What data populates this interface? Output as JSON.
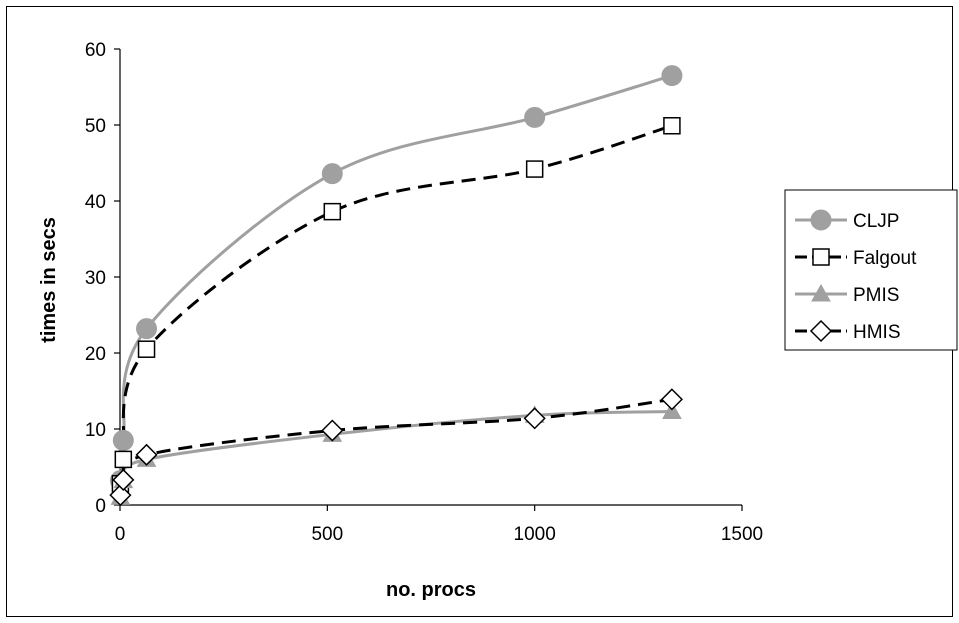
{
  "chart_data": {
    "type": "line",
    "xlabel": "no. procs",
    "ylabel": "times in secs",
    "xlim": [
      0,
      1500
    ],
    "ylim": [
      0,
      60
    ],
    "xticks": [
      0,
      500,
      1000,
      1500
    ],
    "yticks": [
      0,
      10,
      20,
      30,
      40,
      50,
      60
    ],
    "grid": false,
    "legend": "right",
    "series": [
      {
        "name": "CLJP",
        "marker": "circle",
        "line_style": "solid",
        "line_color": "#a0a0a0",
        "marker_fill": "#a0a0a0",
        "points": [
          [
            1,
            3.2
          ],
          [
            8,
            8.5
          ],
          [
            64,
            23.2
          ],
          [
            512,
            43.6
          ],
          [
            1000,
            51.0
          ],
          [
            1331,
            56.5
          ]
        ]
      },
      {
        "name": "Falgout",
        "marker": "square",
        "line_style": "dashed",
        "line_color": "#000000",
        "marker_fill": "#ffffff",
        "points": [
          [
            1,
            2.8
          ],
          [
            8,
            6.0
          ],
          [
            64,
            20.5
          ],
          [
            512,
            38.6
          ],
          [
            1000,
            44.2
          ],
          [
            1331,
            49.9
          ]
        ]
      },
      {
        "name": "PMIS",
        "marker": "triangle",
        "line_style": "solid",
        "line_color": "#a0a0a0",
        "marker_fill": "#a0a0a0",
        "points": [
          [
            1,
            1.0
          ],
          [
            8,
            3.2
          ],
          [
            64,
            6.0
          ],
          [
            512,
            9.3
          ],
          [
            1000,
            11.8
          ],
          [
            1331,
            12.3
          ]
        ]
      },
      {
        "name": "HMIS",
        "marker": "diamond",
        "line_style": "dashed",
        "line_color": "#000000",
        "marker_fill": "#ffffff",
        "points": [
          [
            1,
            1.3
          ],
          [
            8,
            3.3
          ],
          [
            64,
            6.6
          ],
          [
            512,
            9.8
          ],
          [
            1000,
            11.4
          ],
          [
            1331,
            13.9
          ]
        ]
      }
    ]
  }
}
